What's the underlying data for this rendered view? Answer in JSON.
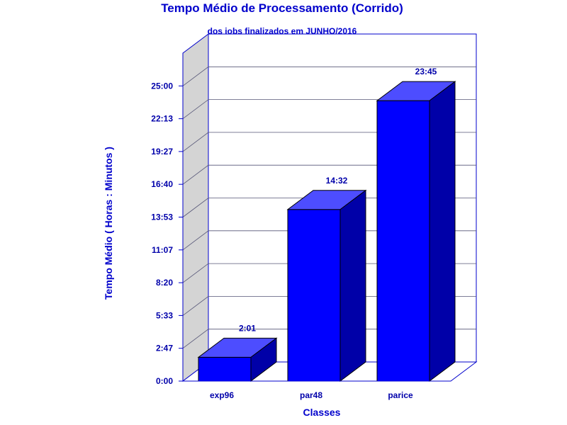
{
  "chart_data": {
    "type": "bar",
    "title": "Tempo Médio de Processamento (Corrido)",
    "subtitle": "dos jobs finalizados em JUNHO/2016",
    "xlabel": "Classes",
    "ylabel": "Tempo Médio ( Horas : Minutos )",
    "categories": [
      "exp96",
      "par48",
      "parice"
    ],
    "values": [
      2.0167,
      14.5333,
      23.75
    ],
    "data_labels": [
      "2:01",
      "14:32",
      "23:45"
    ],
    "ylim": [
      0,
      27.7778
    ],
    "yticks": [
      0,
      2.7778,
      5.5556,
      8.3333,
      11.1111,
      13.8889,
      16.6667,
      19.4444,
      22.2222,
      25.0
    ],
    "ytick_labels": [
      "0:00",
      "2:47",
      "5:33",
      "8:20",
      "11:07",
      "13:53",
      "16:40",
      "19:27",
      "22:13",
      "25:00"
    ],
    "grid": true,
    "colors": {
      "front": "#0000ff",
      "top": "#4d4dff",
      "side": "#0000a8",
      "axis": "#0000cc",
      "wall": "#d4d4d4"
    }
  }
}
